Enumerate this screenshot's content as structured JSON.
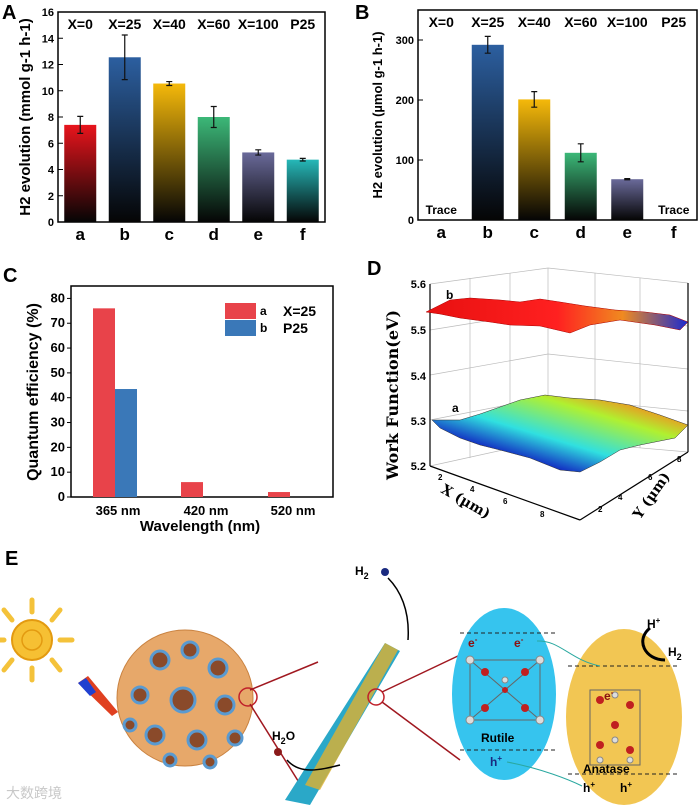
{
  "chart_data": [
    {
      "panel": "A",
      "type": "bar",
      "categories": [
        "a",
        "b",
        "c",
        "d",
        "e",
        "f"
      ],
      "group_labels": [
        "X=0",
        "X=25",
        "X=40",
        "X=60",
        "X=100",
        "P25"
      ],
      "values": [
        7.4,
        12.55,
        10.55,
        8.0,
        5.3,
        4.75
      ],
      "errors": [
        0.65,
        1.7,
        0.15,
        0.8,
        0.2,
        0.1
      ],
      "colors": [
        "#e8141c",
        "#2c5fa0",
        "#f5b90a",
        "#3cb878",
        "#6a6a9a",
        "#26b8b8"
      ],
      "ylabel": "H2 evolution (mmol g-1 h-1)",
      "ylabel_parts": {
        "h": "H",
        "sub": "2",
        "rest": " evolution (mmol g",
        "sup1": "-1",
        "mid": " h",
        "sup2": "-1",
        "end": ")"
      },
      "ylim": [
        0,
        16
      ],
      "yticks": [
        "0",
        "2",
        "4",
        "6",
        "8",
        "10",
        "12",
        "14",
        "16"
      ]
    },
    {
      "panel": "B",
      "type": "bar",
      "categories": [
        "a",
        "b",
        "c",
        "d",
        "e",
        "f"
      ],
      "group_labels": [
        "X=0",
        "X=25",
        "X=40",
        "X=60",
        "X=100",
        "P25"
      ],
      "values": [
        0,
        292,
        201,
        112,
        68,
        0
      ],
      "errors": [
        0,
        14,
        13,
        15,
        1,
        0
      ],
      "annotations": [
        "Trace",
        "",
        "",
        "",
        "",
        "Trace"
      ],
      "colors": [
        "#e8141c",
        "#2c5fa0",
        "#f5b90a",
        "#3cb878",
        "#6a6a9a",
        "#26b8b8"
      ],
      "ylabel": "H2 evolution (µmol g-1 h-1)",
      "ylabel_parts": {
        "h": "H",
        "sub": "2",
        "rest": " evolution (µmol g",
        "sup1": "-1",
        "mid": " h",
        "sup2": "-1",
        "end": ")"
      },
      "ylim": [
        0,
        350
      ],
      "yticks": [
        "0",
        "100",
        "200",
        "300"
      ]
    },
    {
      "panel": "C",
      "type": "bar",
      "categories": [
        "365 nm",
        "420 nm",
        "520 nm"
      ],
      "series": [
        {
          "name": "X=25",
          "key": "a",
          "color": "#e8434a",
          "values": [
            76,
            6,
            2
          ]
        },
        {
          "name": "P25",
          "key": "b",
          "color": "#3a78b8",
          "values": [
            43.5,
            0,
            0
          ]
        }
      ],
      "xlabel": "Wavelength (nm)",
      "ylabel": "Quantum efficiency (%)",
      "ylim": [
        0,
        85
      ],
      "yticks": [
        "0",
        "10",
        "20",
        "30",
        "40",
        "50",
        "60",
        "70",
        "80"
      ],
      "legend": "top-right"
    },
    {
      "panel": "D",
      "type": "surface",
      "zlabel": "Work Function(eV)",
      "xlabel": "X (µm)",
      "ylabel": "Y (µm)",
      "zticks": [
        "5.2",
        "5.3",
        "5.4",
        "5.5",
        "5.6"
      ],
      "xticks": [
        "2",
        "4",
        "6",
        "8"
      ],
      "yticks": [
        "2",
        "4",
        "6",
        "8"
      ],
      "surfaces": [
        {
          "label": "b",
          "mean_value": 5.54
        },
        {
          "label": "a",
          "mean_value": 5.29
        }
      ]
    }
  ],
  "panel_letters": [
    "A",
    "B",
    "C",
    "D",
    "E"
  ],
  "schematic": {
    "h2": "H",
    "h2_sub": "2",
    "h2o": "H",
    "h2o_sub": "2",
    "h2o_end": "O",
    "rutile": "Rutile",
    "anatase": "Anatase",
    "e_minus": "e",
    "minus": "-",
    "h_plus": "h",
    "plus": "+",
    "h_ion": "H",
    "watermark": "大数跨境"
  }
}
